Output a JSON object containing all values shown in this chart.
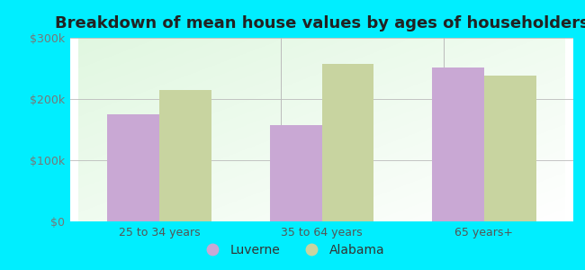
{
  "title": "Breakdown of mean house values by ages of householders",
  "categories": [
    "25 to 34 years",
    "35 to 64 years",
    "65 years+"
  ],
  "luverne_values": [
    175000,
    158000,
    252000
  ],
  "alabama_values": [
    215000,
    258000,
    238000
  ],
  "luverne_color": "#c9a8d4",
  "alabama_color": "#c8d4a0",
  "ylim": [
    0,
    300000
  ],
  "yticks": [
    0,
    100000,
    200000,
    300000
  ],
  "ytick_labels": [
    "$0",
    "$100k",
    "$200k",
    "$300k"
  ],
  "outer_background": "#00eeff",
  "legend_labels": [
    "Luverne",
    "Alabama"
  ],
  "bar_width": 0.32,
  "title_fontsize": 13,
  "tick_fontsize": 9,
  "legend_fontsize": 10
}
